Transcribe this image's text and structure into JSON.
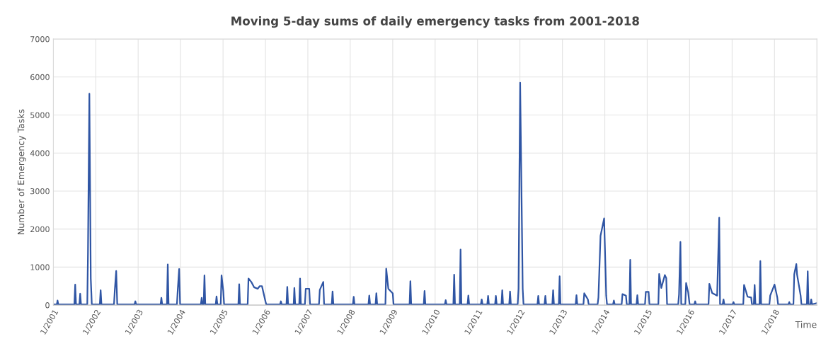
{
  "chart_data": {
    "type": "line",
    "title": "Moving 5-day sums of daily emergency tasks from 2001-2018",
    "xlabel": "Time",
    "ylabel": "Number of Emergency Tasks",
    "series": [
      {
        "color": "#2f55a4",
        "x": [
          "2001-01-01",
          "2001-01-31",
          "2001-02-06",
          "2001-02-12",
          "2001-07-01",
          "2001-07-08",
          "2001-07-15",
          "2001-08-13",
          "2001-08-20",
          "2001-08-27",
          "2001-10-20",
          "2001-10-26",
          "2001-11-07",
          "2001-11-19",
          "2001-11-28",
          "2002-02-05",
          "2002-02-12",
          "2002-02-19",
          "2002-06-07",
          "2002-06-14",
          "2002-06-26",
          "2002-07-05",
          "2002-12-01",
          "2002-12-08",
          "2002-12-15",
          "2003-07-13",
          "2003-07-20",
          "2003-07-27",
          "2003-09-06",
          "2003-09-13",
          "2003-09-20",
          "2003-12-01",
          "2003-12-08",
          "2003-12-20",
          "2003-12-28",
          "2004-06-24",
          "2004-07-01",
          "2004-07-08",
          "2004-07-18",
          "2004-07-25",
          "2004-08-01",
          "2004-10-30",
          "2004-11-06",
          "2004-11-13",
          "2004-12-12",
          "2004-12-19",
          "2005-01-03",
          "2005-01-10",
          "2005-05-13",
          "2005-05-20",
          "2005-05-27",
          "2005-08-01",
          "2005-08-08",
          "2005-09-01",
          "2005-09-25",
          "2005-10-26",
          "2005-11-13",
          "2005-12-02",
          "2006-01-01",
          "2006-01-08",
          "2006-05-07",
          "2006-05-14",
          "2006-05-21",
          "2006-07-01",
          "2006-07-08",
          "2006-07-15",
          "2006-09-01",
          "2006-09-07",
          "2006-09-14",
          "2006-10-19",
          "2006-10-26",
          "2006-11-02",
          "2006-12-07",
          "2006-12-14",
          "2007-01-13",
          "2007-01-20",
          "2007-04-07",
          "2007-04-14",
          "2007-05-14",
          "2007-05-21",
          "2007-07-26",
          "2007-08-02",
          "2007-08-09",
          "2008-01-24",
          "2008-01-31",
          "2008-02-07",
          "2008-06-06",
          "2008-06-13",
          "2008-06-20",
          "2008-08-06",
          "2008-08-13",
          "2008-08-20",
          "2008-10-30",
          "2008-11-06",
          "2008-11-24",
          "2009-01-01",
          "2009-01-08",
          "2009-05-26",
          "2009-06-02",
          "2009-06-09",
          "2009-09-25",
          "2009-10-02",
          "2009-10-09",
          "2010-03-26",
          "2010-04-02",
          "2010-04-09",
          "2010-06-07",
          "2010-06-14",
          "2010-06-21",
          "2010-08-01",
          "2010-08-08",
          "2010-08-15",
          "2010-10-07",
          "2010-10-14",
          "2010-10-21",
          "2011-01-30",
          "2011-02-06",
          "2011-02-13",
          "2011-03-26",
          "2011-04-02",
          "2011-04-09",
          "2011-06-01",
          "2011-06-08",
          "2011-06-15",
          "2011-07-26",
          "2011-08-02",
          "2011-08-09",
          "2011-10-01",
          "2011-10-08",
          "2011-10-15",
          "2011-12-13",
          "2011-12-20",
          "2012-01-03",
          "2012-01-25",
          "2012-02-01",
          "2012-05-31",
          "2012-06-07",
          "2012-06-14",
          "2012-07-31",
          "2012-08-07",
          "2012-08-14",
          "2012-10-06",
          "2012-10-13",
          "2012-10-20",
          "2012-12-01",
          "2012-12-08",
          "2012-12-15",
          "2013-04-25",
          "2013-05-02",
          "2013-05-09",
          "2013-07-01",
          "2013-07-08",
          "2013-08-08",
          "2013-08-15",
          "2013-10-31",
          "2013-11-07",
          "2013-11-25",
          "2013-12-26",
          "2014-01-13",
          "2014-01-20",
          "2014-03-13",
          "2014-03-20",
          "2014-03-27",
          "2014-05-26",
          "2014-06-02",
          "2014-07-02",
          "2014-07-09",
          "2014-08-01",
          "2014-08-08",
          "2014-08-15",
          "2014-10-01",
          "2014-10-08",
          "2014-10-15",
          "2014-12-13",
          "2014-12-20",
          "2015-01-13",
          "2015-01-20",
          "2015-04-07",
          "2015-04-14",
          "2015-05-02",
          "2015-06-02",
          "2015-06-14",
          "2015-06-21",
          "2015-09-25",
          "2015-10-02",
          "2015-10-14",
          "2015-10-21",
          "2015-11-25",
          "2015-12-02",
          "2015-12-20",
          "2016-01-01",
          "2016-02-11",
          "2016-02-18",
          "2016-02-25",
          "2016-06-12",
          "2016-06-19",
          "2016-07-13",
          "2016-08-25",
          "2016-09-12",
          "2016-09-19",
          "2016-10-12",
          "2016-10-19",
          "2016-10-26",
          "2017-01-06",
          "2017-01-13",
          "2017-01-20",
          "2017-04-07",
          "2017-04-14",
          "2017-05-14",
          "2017-06-14",
          "2017-06-21",
          "2017-07-07",
          "2017-07-14",
          "2017-07-21",
          "2017-08-25",
          "2017-09-01",
          "2017-09-08",
          "2017-11-18",
          "2017-11-25",
          "2018-01-01",
          "2018-01-25",
          "2018-02-01",
          "2018-05-01",
          "2018-05-08",
          "2018-05-15",
          "2018-06-13",
          "2018-06-20",
          "2018-07-08",
          "2018-07-14",
          "2018-08-14",
          "2018-08-21",
          "2018-10-07",
          "2018-10-14",
          "2018-10-21",
          "2018-11-06",
          "2018-11-13",
          "2018-11-20",
          "2018-12-31"
        ],
        "values": [
          20,
          20,
          120,
          20,
          20,
          540,
          20,
          20,
          300,
          20,
          20,
          1400,
          5560,
          700,
          20,
          20,
          390,
          20,
          20,
          390,
          900,
          20,
          20,
          100,
          20,
          20,
          190,
          20,
          20,
          1070,
          20,
          20,
          400,
          950,
          20,
          20,
          190,
          20,
          20,
          780,
          20,
          20,
          230,
          20,
          20,
          780,
          370,
          20,
          20,
          550,
          20,
          20,
          700,
          610,
          470,
          430,
          500,
          500,
          100,
          20,
          20,
          100,
          20,
          20,
          480,
          20,
          20,
          450,
          20,
          20,
          700,
          20,
          20,
          430,
          430,
          20,
          20,
          400,
          610,
          20,
          20,
          360,
          20,
          20,
          220,
          20,
          20,
          250,
          20,
          20,
          310,
          20,
          20,
          960,
          430,
          310,
          20,
          20,
          630,
          20,
          20,
          370,
          20,
          20,
          130,
          20,
          20,
          800,
          20,
          20,
          1460,
          20,
          20,
          250,
          20,
          20,
          150,
          20,
          20,
          240,
          20,
          20,
          240,
          20,
          20,
          390,
          20,
          20,
          360,
          20,
          20,
          430,
          5850,
          430,
          20,
          20,
          240,
          20,
          20,
          240,
          20,
          20,
          390,
          20,
          20,
          760,
          20,
          20,
          260,
          20,
          20,
          310,
          150,
          20,
          20,
          200,
          1820,
          2280,
          250,
          20,
          20,
          120,
          20,
          20,
          290,
          250,
          20,
          20,
          1190,
          20,
          20,
          260,
          20,
          20,
          350,
          350,
          20,
          20,
          820,
          450,
          790,
          710,
          20,
          20,
          280,
          1660,
          20,
          20,
          580,
          330,
          20,
          20,
          100,
          20,
          20,
          560,
          320,
          250,
          2300,
          20,
          20,
          150,
          20,
          20,
          80,
          20,
          20,
          530,
          220,
          200,
          20,
          20,
          530,
          20,
          20,
          1160,
          20,
          20,
          250,
          540,
          200,
          20,
          20,
          80,
          20,
          20,
          810,
          1080,
          810,
          250,
          20,
          20,
          890,
          20,
          20,
          150,
          20,
          50
        ]
      }
    ],
    "xlim": [
      "2001-01-01",
      "2019-01-01"
    ],
    "xticks": [
      {
        "value": "2001-01-01",
        "label": "1/2001"
      },
      {
        "value": "2002-01-01",
        "label": "1/2002"
      },
      {
        "value": "2003-01-01",
        "label": "1/2003"
      },
      {
        "value": "2004-01-01",
        "label": "1/2004"
      },
      {
        "value": "2005-01-01",
        "label": "1/2005"
      },
      {
        "value": "2006-01-01",
        "label": "1/2006"
      },
      {
        "value": "2007-01-01",
        "label": "1/2007"
      },
      {
        "value": "2008-01-01",
        "label": "1/2008"
      },
      {
        "value": "2009-01-01",
        "label": "1/2009"
      },
      {
        "value": "2010-01-01",
        "label": "1/2010"
      },
      {
        "value": "2011-01-01",
        "label": "1/2011"
      },
      {
        "value": "2012-01-01",
        "label": "1/2012"
      },
      {
        "value": "2013-01-01",
        "label": "1/2013"
      },
      {
        "value": "2014-01-01",
        "label": "1/2014"
      },
      {
        "value": "2015-01-01",
        "label": "1/2015"
      },
      {
        "value": "2016-01-01",
        "label": "1/2016"
      },
      {
        "value": "2017-01-01",
        "label": "1/2017"
      },
      {
        "value": "2018-01-01",
        "label": "1/2018"
      }
    ],
    "ylim": [
      0,
      7000
    ],
    "yticks": [
      0,
      1000,
      2000,
      3000,
      4000,
      5000,
      6000,
      7000
    ],
    "grid": true
  }
}
